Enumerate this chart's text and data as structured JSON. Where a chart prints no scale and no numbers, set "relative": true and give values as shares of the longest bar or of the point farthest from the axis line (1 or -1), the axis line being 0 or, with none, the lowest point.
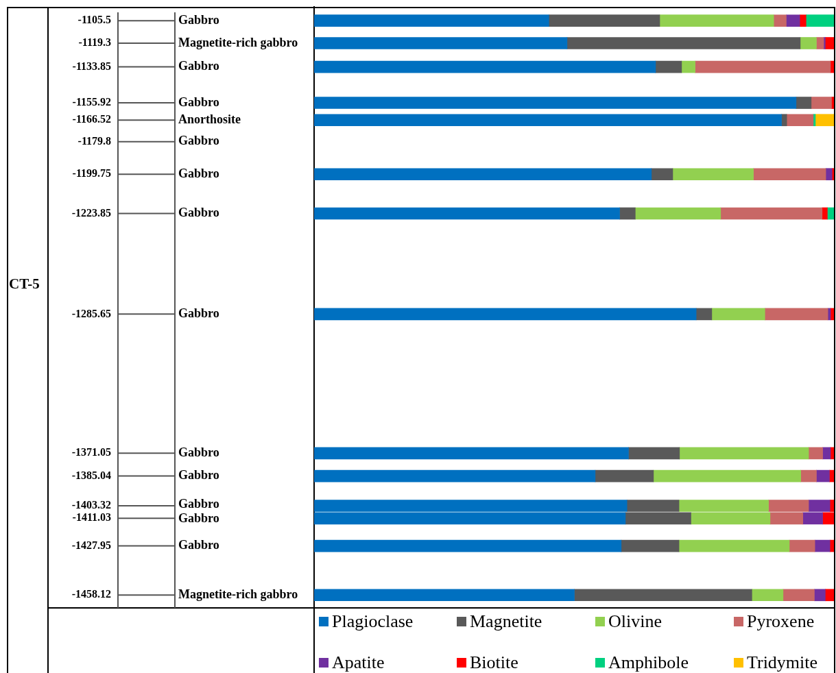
{
  "chart_data": {
    "type": "bar",
    "orientation": "horizontal",
    "stacked": true,
    "relative": true,
    "legend": "bottom",
    "ylabel": "CT-5",
    "x": [
      -1105.5,
      -1119.3,
      -1133.85,
      -1155.92,
      -1166.52,
      -1179.8,
      -1199.75,
      -1223.85,
      -1285.65,
      -1371.05,
      -1385.04,
      -1403.32,
      -1411.03,
      -1427.95,
      -1458.12
    ],
    "ylim": [
      -1466,
      -1097
    ],
    "yticks": [
      -1105.5,
      -1119.3,
      -1133.85,
      -1155.92,
      -1166.52,
      -1179.8,
      -1199.75,
      -1223.85,
      -1285.65,
      -1371.05,
      -1385.04,
      -1403.32,
      -1411.03,
      -1427.95,
      -1458.12
    ],
    "series": [
      {
        "name": "Plagioclase",
        "color": "#0070c0",
        "values": [
          0.451,
          0.486,
          0.656,
          0.926,
          0.898,
          null,
          0.648,
          0.587,
          0.734,
          0.604,
          0.54,
          0.601,
          0.598,
          0.59,
          0.5
        ]
      },
      {
        "name": "Magnetite",
        "color": "#595959",
        "values": [
          0.213,
          0.448,
          0.05,
          0.029,
          0.01,
          null,
          0.041,
          0.03,
          0.03,
          0.098,
          0.112,
          0.1,
          0.126,
          0.111,
          0.341
        ]
      },
      {
        "name": "Olivine",
        "color": "#92d050",
        "values": [
          0.219,
          0.031,
          0.026,
          null,
          null,
          null,
          0.155,
          0.164,
          0.102,
          0.248,
          0.283,
          0.172,
          0.152,
          0.212,
          0.06
        ]
      },
      {
        "name": "Pyroxene",
        "color": "#c86766",
        "values": [
          0.024,
          0.014,
          0.26,
          0.039,
          0.051,
          null,
          0.139,
          0.195,
          0.121,
          0.027,
          0.03,
          0.077,
          0.063,
          0.049,
          0.06
        ]
      },
      {
        "name": "Apatite",
        "color": "#7030a0",
        "values": [
          0.026,
          0.003,
          null,
          null,
          null,
          null,
          0.012,
          null,
          0.005,
          0.015,
          0.025,
          0.041,
          0.038,
          0.029,
          0.021
        ]
      },
      {
        "name": "Biotite",
        "color": "#ff0000",
        "values": [
          0.012,
          0.018,
          0.008,
          0.006,
          null,
          null,
          0.005,
          0.01,
          0.008,
          0.008,
          0.01,
          0.009,
          0.023,
          0.009,
          0.018
        ]
      },
      {
        "name": "Amphibole",
        "color": "#00d080",
        "values": [
          0.055,
          null,
          null,
          null,
          0.004,
          null,
          null,
          0.014,
          null,
          null,
          null,
          null,
          null,
          null,
          null
        ]
      },
      {
        "name": "Tridymite",
        "color": "#ffc000",
        "values": [
          null,
          null,
          null,
          null,
          0.037,
          null,
          null,
          null,
          null,
          null,
          null,
          null,
          null,
          null,
          null
        ]
      }
    ],
    "annotations": [
      "Gabbro",
      "Magnetite-rich gabbro",
      "Gabbro",
      "Gabbro",
      "Anorthosite",
      "Gabbro",
      "Gabbro",
      "Gabbro",
      "Gabbro",
      "Gabbro",
      "Gabbro",
      "Gabbro",
      "Gabbro",
      "Gabbro",
      "Magnetite-rich gabbro"
    ]
  }
}
